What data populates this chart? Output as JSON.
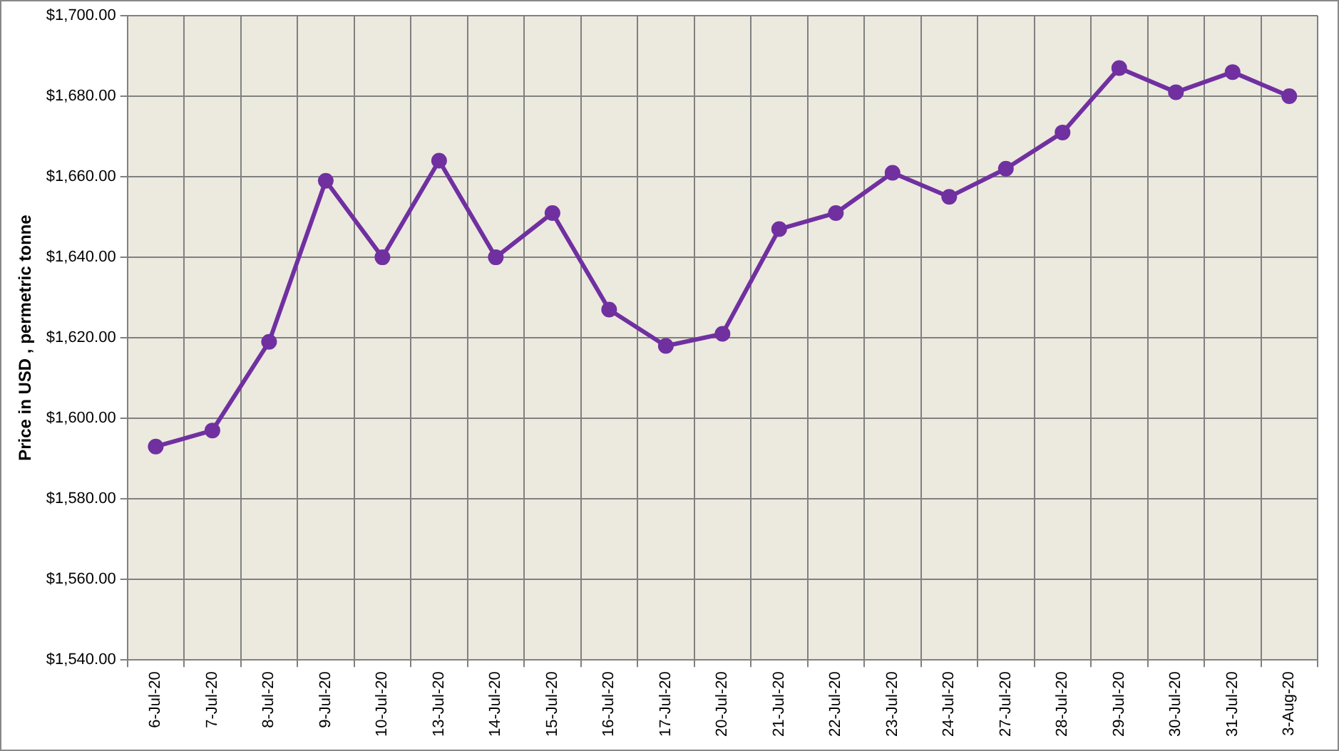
{
  "chart_data": {
    "type": "line",
    "ylabel": "Price in USD , permetric tonne",
    "categories": [
      "6-Jul-20",
      "7-Jul-20",
      "8-Jul-20",
      "9-Jul-20",
      "10-Jul-20",
      "13-Jul-20",
      "14-Jul-20",
      "15-Jul-20",
      "16-Jul-20",
      "17-Jul-20",
      "20-Jul-20",
      "21-Jul-20",
      "22-Jul-20",
      "23-Jul-20",
      "24-Jul-20",
      "27-Jul-20",
      "28-Jul-20",
      "29-Jul-20",
      "30-Jul-20",
      "31-Jul-20",
      "3-Aug-20"
    ],
    "series": [
      {
        "color": "#7030a0",
        "values": [
          1593,
          1597,
          1619,
          1659,
          1640,
          1664,
          1640,
          1651,
          1627,
          1618,
          1621,
          1647,
          1651,
          1661,
          1655,
          1662,
          1671,
          1687,
          1681,
          1686,
          1680
        ]
      }
    ],
    "ylim": [
      1540,
      1700
    ],
    "yticks": [
      {
        "value": 1540,
        "label": "$1,540.00"
      },
      {
        "value": 1560,
        "label": "$1,560.00"
      },
      {
        "value": 1580,
        "label": "$1,580.00"
      },
      {
        "value": 1600,
        "label": "$1,600.00"
      },
      {
        "value": 1620,
        "label": "$1,620.00"
      },
      {
        "value": 1640,
        "label": "$1,640.00"
      },
      {
        "value": 1660,
        "label": "$1,660.00"
      },
      {
        "value": 1680,
        "label": "$1,680.00"
      },
      {
        "value": 1700,
        "label": "$1,700.00"
      }
    ],
    "grid": true,
    "legend": false,
    "marker": "circle",
    "line_style": "solid"
  }
}
